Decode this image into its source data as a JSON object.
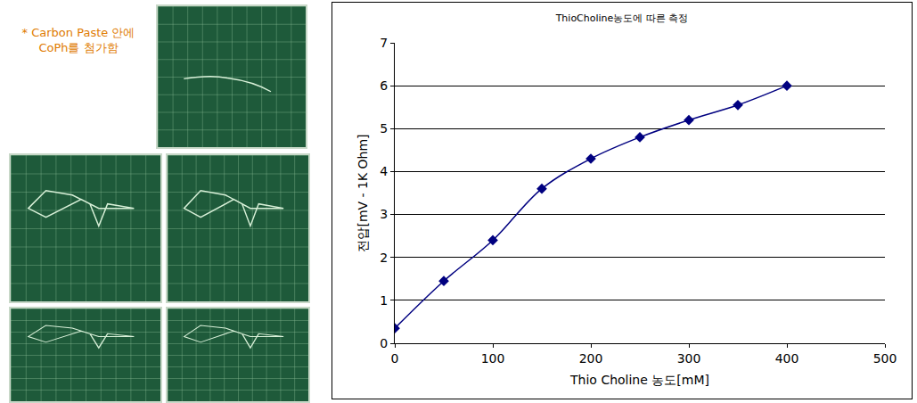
{
  "panel_note": "* Carbon Paste 안에 CoPh를 첨가함",
  "chart_data": {
    "type": "line",
    "title": "ThioCholine농도에 따른 측정",
    "x_label": "Thio Choline 농도[mM]",
    "y_label": "전압[mV - 1K Ohm]",
    "x": [
      0,
      50,
      100,
      150,
      200,
      250,
      300,
      350,
      400
    ],
    "values": [
      0.35,
      1.45,
      2.4,
      3.6,
      4.3,
      4.8,
      5.2,
      5.55,
      6.0
    ],
    "color": "#000080",
    "marker": "diamond",
    "xlim": [
      0,
      500
    ],
    "xticks": [
      0,
      100,
      200,
      300,
      400,
      500
    ],
    "ylim": [
      0,
      7
    ],
    "yticks": [
      0,
      1,
      2,
      3,
      4,
      5,
      6,
      7
    ],
    "grid": true
  }
}
